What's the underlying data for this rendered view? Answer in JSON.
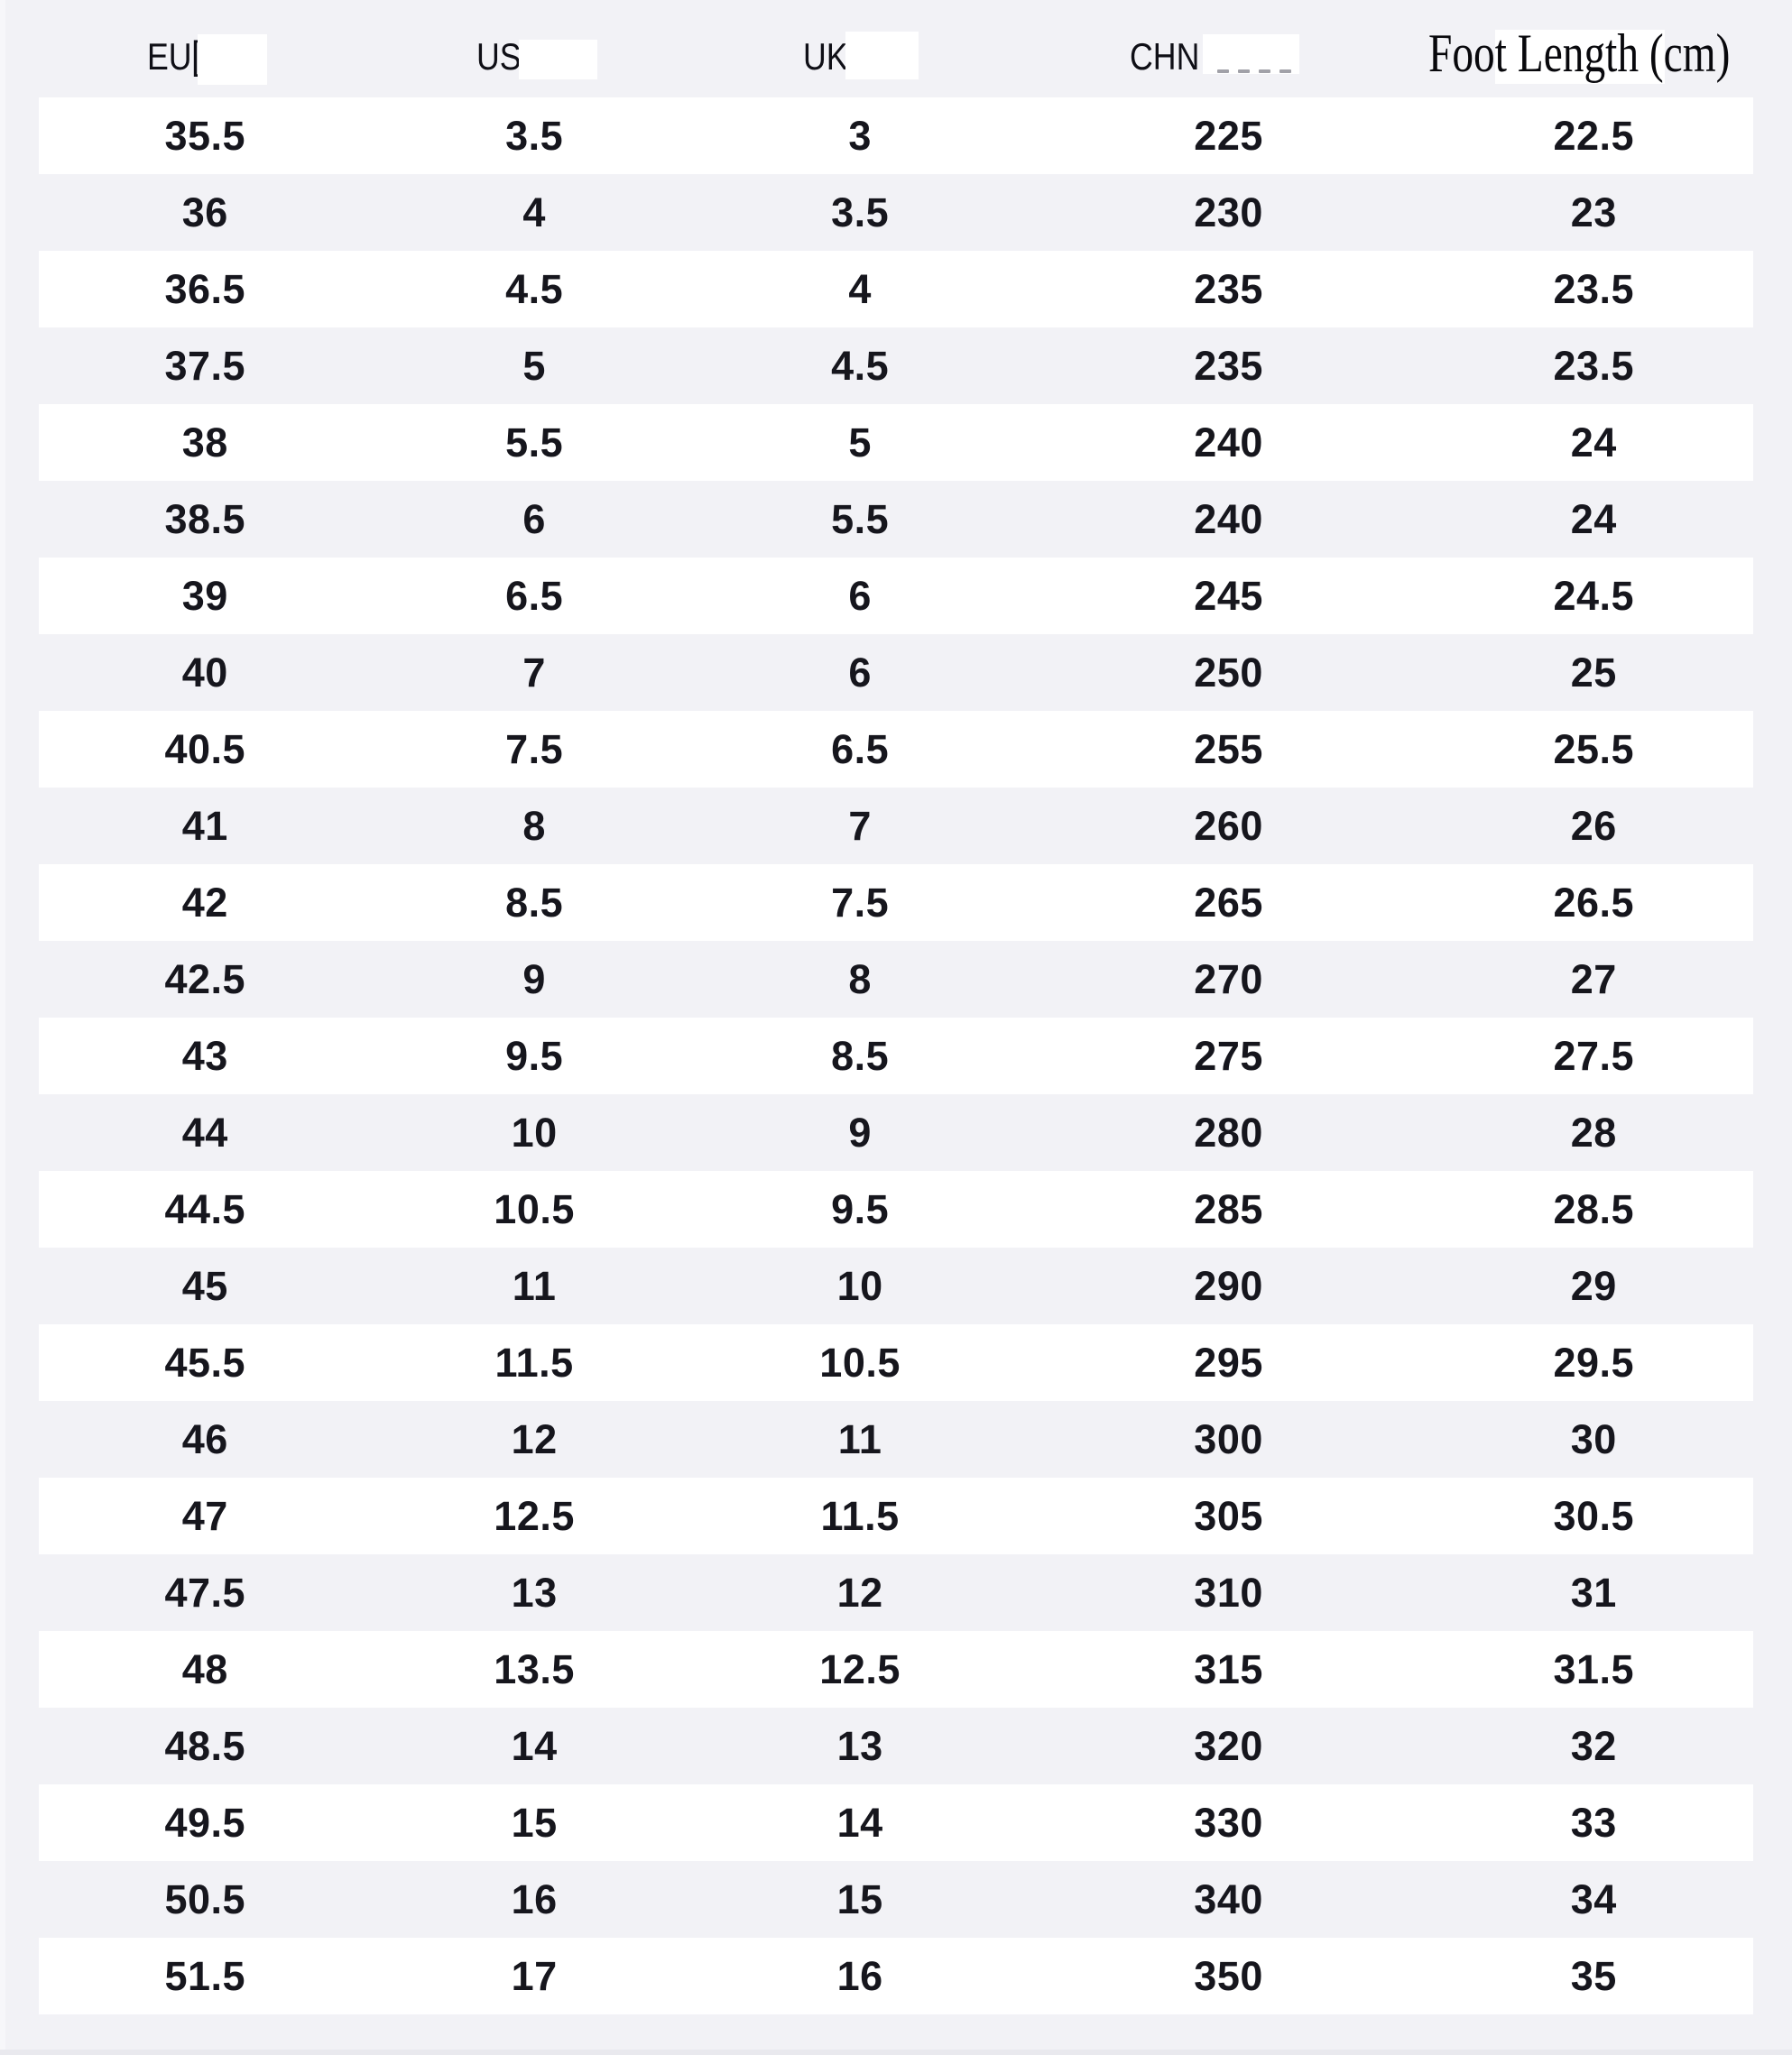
{
  "colors": {
    "background": "#f2f2f6",
    "row_alt": "#ffffff",
    "text": "#16161d",
    "header_text": "#0f0f16",
    "patch": "#ffffff",
    "bottom_strip": "#e9e9ee",
    "left_strip": "#f7f7fa",
    "remnant": "#6f6f7a"
  },
  "header": {
    "eu": "EU",
    "eu_remnant": "[",
    "us": "US",
    "uk": "UK",
    "chn": "CHN",
    "foot": "Foot Length (cm)"
  },
  "columns": [
    "EU",
    "US",
    "UK",
    "CHN",
    "Foot Length (cm)"
  ],
  "rows": [
    [
      "35.5",
      "3.5",
      "3",
      "225",
      "22.5"
    ],
    [
      "36",
      "4",
      "3.5",
      "230",
      "23"
    ],
    [
      "36.5",
      "4.5",
      "4",
      "235",
      "23.5"
    ],
    [
      "37.5",
      "5",
      "4.5",
      "235",
      "23.5"
    ],
    [
      "38",
      "5.5",
      "5",
      "240",
      "24"
    ],
    [
      "38.5",
      "6",
      "5.5",
      "240",
      "24"
    ],
    [
      "39",
      "6.5",
      "6",
      "245",
      "24.5"
    ],
    [
      "40",
      "7",
      "6",
      "250",
      "25"
    ],
    [
      "40.5",
      "7.5",
      "6.5",
      "255",
      "25.5"
    ],
    [
      "41",
      "8",
      "7",
      "260",
      "26"
    ],
    [
      "42",
      "8.5",
      "7.5",
      "265",
      "26.5"
    ],
    [
      "42.5",
      "9",
      "8",
      "270",
      "27"
    ],
    [
      "43",
      "9.5",
      "8.5",
      "275",
      "27.5"
    ],
    [
      "44",
      "10",
      "9",
      "280",
      "28"
    ],
    [
      "44.5",
      "10.5",
      "9.5",
      "285",
      "28.5"
    ],
    [
      "45",
      "11",
      "10",
      "290",
      "29"
    ],
    [
      "45.5",
      "11.5",
      "10.5",
      "295",
      "29.5"
    ],
    [
      "46",
      "12",
      "11",
      "300",
      "30"
    ],
    [
      "47",
      "12.5",
      "11.5",
      "305",
      "30.5"
    ],
    [
      "47.5",
      "13",
      "12",
      "310",
      "31"
    ],
    [
      "48",
      "13.5",
      "12.5",
      "315",
      "31.5"
    ],
    [
      "48.5",
      "14",
      "13",
      "320",
      "32"
    ],
    [
      "49.5",
      "15",
      "14",
      "330",
      "33"
    ],
    [
      "50.5",
      "16",
      "15",
      "340",
      "34"
    ],
    [
      "51.5",
      "17",
      "16",
      "350",
      "35"
    ]
  ]
}
